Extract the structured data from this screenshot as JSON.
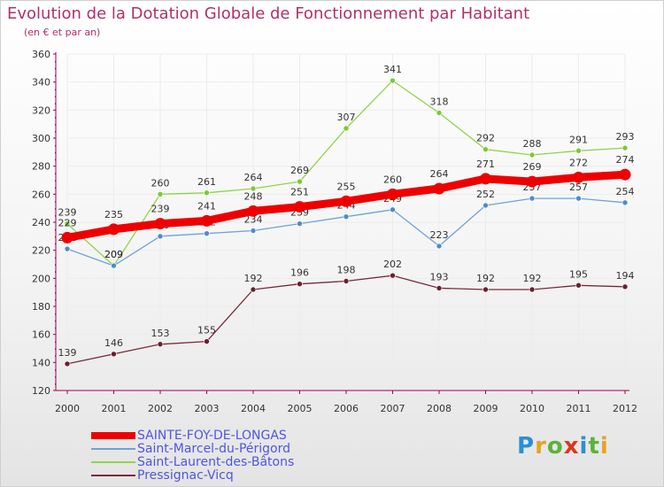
{
  "header": {
    "title": "Evolution de la Dotation Globale de Fonctionnement par Habitant",
    "subtitle": "(en € et par an)"
  },
  "colors": {
    "title": "#b0306a",
    "axis": "#a0004a",
    "grid": "#ececec",
    "legend_text": "#4f55e0"
  },
  "chart_data": {
    "type": "line",
    "title": "Evolution de la Dotation Globale de Fonctionnement par Habitant",
    "subtitle": "(en € et par an)",
    "x": [
      "2000",
      "2001",
      "2002",
      "2003",
      "2004",
      "2005",
      "2006",
      "2007",
      "2008",
      "2009",
      "2010",
      "2011",
      "2012"
    ],
    "ylim": [
      120,
      360
    ],
    "yticks": [
      120,
      140,
      160,
      180,
      200,
      220,
      240,
      260,
      280,
      300,
      320,
      340,
      360
    ],
    "grid": true,
    "legend_position": "bottom",
    "series": [
      {
        "name": "Saint-Laurent-des-Bâtons",
        "color": "#8fd44a",
        "dot": "#7cc934",
        "values": [
          239,
          209,
          260,
          261,
          264,
          269,
          307,
          341,
          318,
          292,
          288,
          291,
          293
        ]
      },
      {
        "name": "Saint-Marcel-du-Périgord",
        "color": "#6ea3d8",
        "dot": "#4e8cc9",
        "values": [
          221,
          209,
          230,
          232,
          234,
          239,
          244,
          249,
          223,
          252,
          257,
          257,
          254
        ]
      },
      {
        "name": "Pressignac-Vicq",
        "color": "#7a2a3a",
        "dot": "#6a1e2e",
        "values": [
          139,
          146,
          153,
          155,
          192,
          196,
          198,
          202,
          193,
          192,
          192,
          195,
          194
        ]
      },
      {
        "name": "SAINTE-FOY-DE-LONGAS",
        "color": "#ee0000",
        "dot": "#ee0000",
        "emphasis": true,
        "values": [
          229,
          235,
          239,
          241,
          248,
          251,
          255,
          260,
          264,
          271,
          269,
          272,
          274
        ]
      }
    ]
  },
  "legend": {
    "items": [
      {
        "label": "SAINTE-FOY-DE-LONGAS",
        "color": "#ee0000",
        "thickness": "thick"
      },
      {
        "label": "Saint-Marcel-du-Périgord",
        "color": "#6ea3d8",
        "thickness": "thin"
      },
      {
        "label": "Saint-Laurent-des-Bâtons",
        "color": "#8fd44a",
        "thickness": "thin"
      },
      {
        "label": "Pressignac-Vicq",
        "color": "#7a2a3a",
        "thickness": "thin"
      }
    ]
  },
  "logo": {
    "text": "Proxiti",
    "letter_colors": [
      "#2a8fd6",
      "#e8a323",
      "#5cb23a",
      "#d9381e",
      "#2a8fd6",
      "#5cb23a",
      "#e8a323"
    ]
  }
}
